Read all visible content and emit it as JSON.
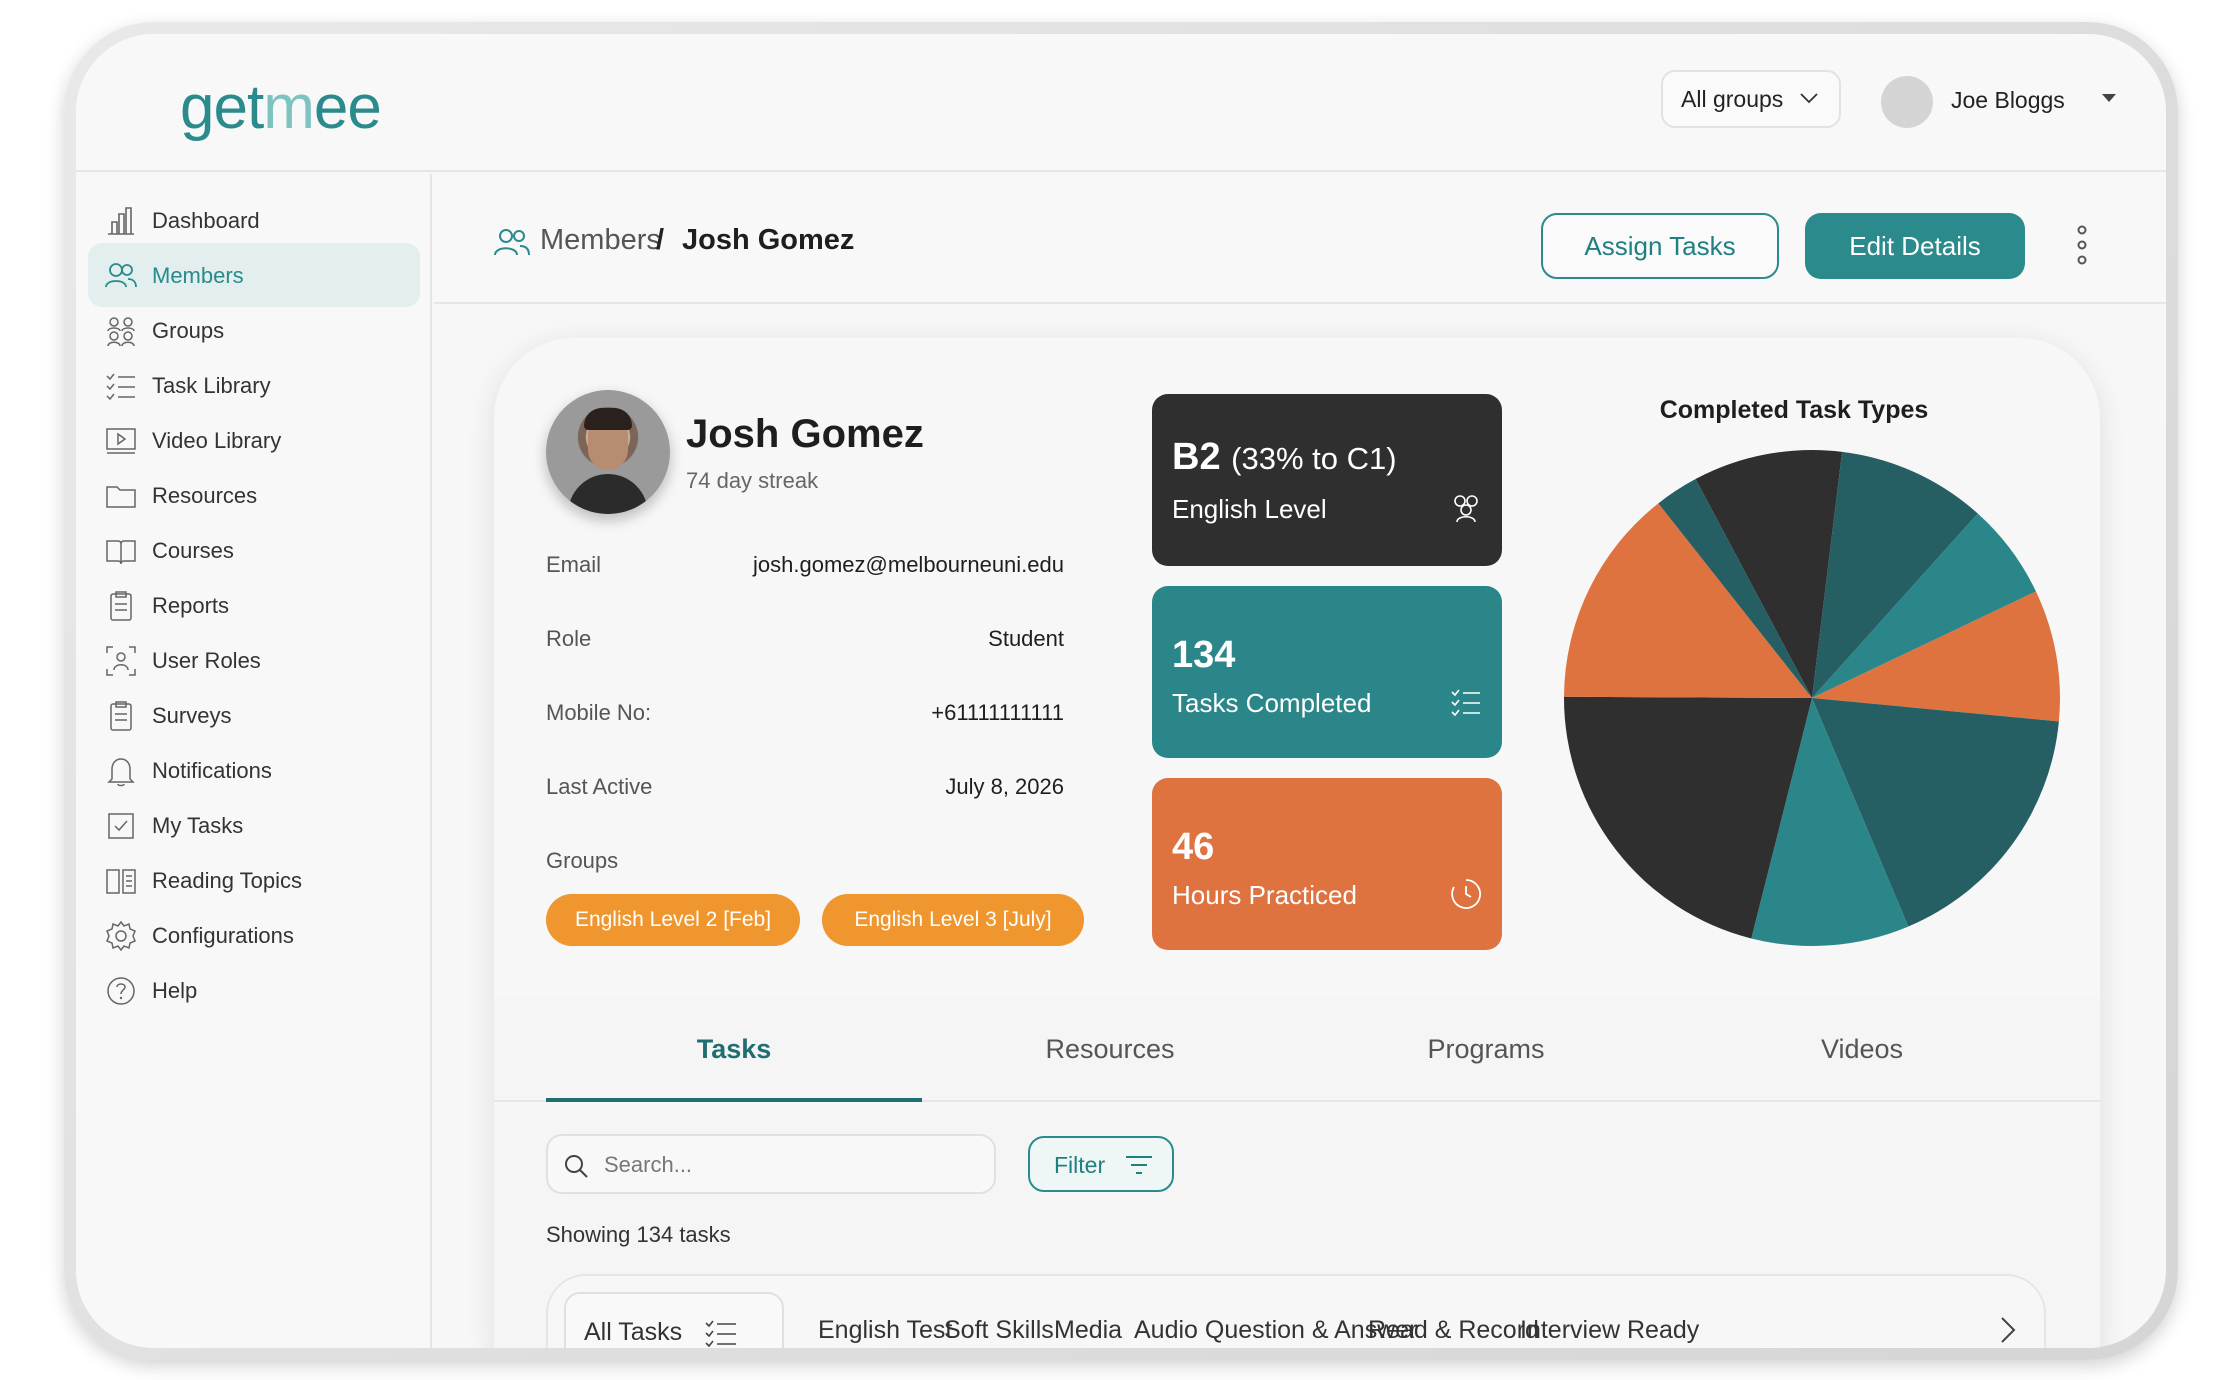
{
  "app": {
    "logo_part1": "get",
    "logo_part2": "m",
    "logo_part3": "ee"
  },
  "topbar": {
    "groups_select": "All groups",
    "user_name": "Joe Bloggs"
  },
  "sidebar": {
    "items": [
      {
        "label": "Dashboard",
        "icon": "bar-chart-icon"
      },
      {
        "label": "Members",
        "icon": "users-icon",
        "active": true
      },
      {
        "label": "Groups",
        "icon": "group-icon"
      },
      {
        "label": "Task Library",
        "icon": "checklist-icon"
      },
      {
        "label": "Video Library",
        "icon": "video-icon"
      },
      {
        "label": "Resources",
        "icon": "folder-icon"
      },
      {
        "label": "Courses",
        "icon": "book-icon"
      },
      {
        "label": "Reports",
        "icon": "clipboard-icon"
      },
      {
        "label": "User Roles",
        "icon": "user-frame-icon"
      },
      {
        "label": "Surveys",
        "icon": "clipboard-icon"
      },
      {
        "label": "Notifications",
        "icon": "bell-icon"
      },
      {
        "label": "My Tasks",
        "icon": "checkbox-icon"
      },
      {
        "label": "Reading Topics",
        "icon": "open-book-icon"
      },
      {
        "label": "Configurations",
        "icon": "gear-icon"
      },
      {
        "label": "Help",
        "icon": "help-icon"
      }
    ]
  },
  "header": {
    "breadcrumb_parent": "Members",
    "breadcrumb_sep": "/",
    "breadcrumb_current": "Josh Gomez",
    "assign_label": "Assign Tasks",
    "edit_label": "Edit Details"
  },
  "profile": {
    "name": "Josh Gomez",
    "streak": "74 day streak",
    "fields": [
      {
        "label": "Email",
        "value": "josh.gomez@melbourneuni.edu"
      },
      {
        "label": "Role",
        "value": "Student"
      },
      {
        "label": "Mobile No:",
        "value": "+61111111111"
      },
      {
        "label": "Last Active",
        "value": "July 8, 2026"
      }
    ],
    "groups_label": "Groups",
    "groups": [
      "English Level 2 [Feb]",
      "English Level 3 [July]"
    ]
  },
  "stats": {
    "level": {
      "big": "B2",
      "small": "(33% to C1)",
      "label": "English Level"
    },
    "tasks": {
      "big": "134",
      "label": "Tasks Completed"
    },
    "hours": {
      "big": "46",
      "label": "Hours Practiced"
    }
  },
  "colors": {
    "teal": "#2a8a8c",
    "dark": "#2f2f2f",
    "orange": "#df7340",
    "dark_teal": "#255f63",
    "mid_teal": "#2b868a",
    "tag_orange": "#f0962f"
  },
  "chart_data": {
    "type": "pie",
    "title": "Completed Task Types",
    "series": [
      {
        "value": 8.5,
        "color": "#2f2f2f"
      },
      {
        "value": 8.5,
        "color": "#255f63"
      },
      {
        "value": 5.5,
        "color": "#2b868a"
      },
      {
        "value": 7.5,
        "color": "#df7340"
      },
      {
        "value": 15.0,
        "color": "#255f63"
      },
      {
        "value": 9.0,
        "color": "#2b868a"
      },
      {
        "value": 18.5,
        "color": "#2f2f2f"
      },
      {
        "value": 12.5,
        "color": "#df7340"
      },
      {
        "value": 2.5,
        "color": "#255f63"
      }
    ]
  },
  "tabs": [
    "Tasks",
    "Resources",
    "Programs",
    "Videos"
  ],
  "tasks_panel": {
    "search_placeholder": "Search...",
    "filter_label": "Filter",
    "showing": "Showing 134 tasks",
    "all_tasks_label": "All Tasks",
    "categories": [
      "English Test",
      "Soft Skills",
      "Media",
      "Audio Question & Answer",
      "Read & Record",
      "Interview Ready"
    ]
  }
}
